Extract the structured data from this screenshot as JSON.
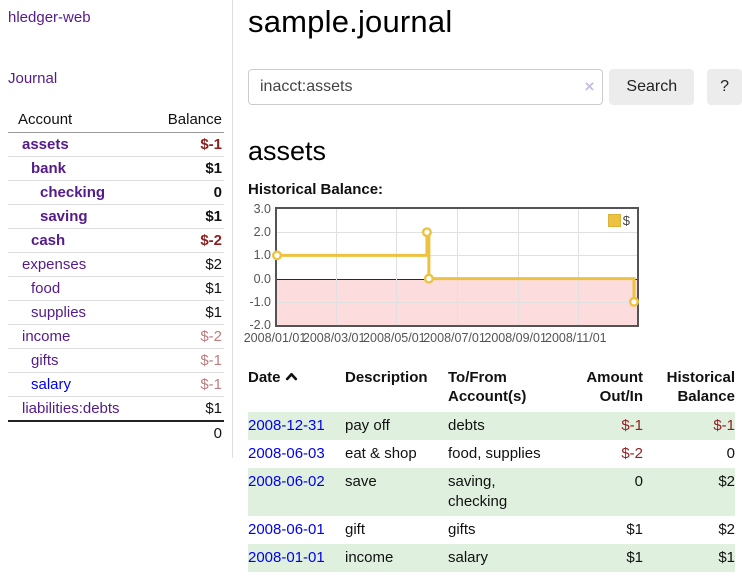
{
  "app": {
    "title": "hledger-web"
  },
  "colors": {
    "link_purple": "#551a8b",
    "link_blue": "#0000ee",
    "negative_strong": "#8f1e1e",
    "negative_muted": "#bc7e7e",
    "row_green": "#dff0df",
    "chart_line_gold": "#edc240",
    "chart_negative_fill": "#fcdcdc",
    "chart_zero_line": "#8b0000"
  },
  "sidebar": {
    "journal_link": "Journal",
    "accounts": {
      "header_account": "Account",
      "header_balance": "Balance",
      "rows": [
        {
          "name": "assets",
          "balance": "$-1"
        },
        {
          "name": "bank",
          "balance": "$1"
        },
        {
          "name": "checking",
          "balance": "0"
        },
        {
          "name": "saving",
          "balance": "$1"
        },
        {
          "name": "cash",
          "balance": "$-2"
        },
        {
          "name": "expenses",
          "balance": "$2"
        },
        {
          "name": "food",
          "balance": "$1"
        },
        {
          "name": "supplies",
          "balance": "$1"
        },
        {
          "name": "income",
          "balance": "$-2"
        },
        {
          "name": "gifts",
          "balance": "$-1"
        },
        {
          "name": "salary",
          "balance": "$-1"
        },
        {
          "name": "liabilities:debts",
          "balance": "$1"
        }
      ],
      "total": "0"
    }
  },
  "main": {
    "title": "sample.journal",
    "search": {
      "value": "inacct:assets",
      "clear_icon": "×",
      "button_label": "Search",
      "help_label": "?"
    },
    "account_heading": "assets",
    "chart_label": "Historical Balance:"
  },
  "chart_data": {
    "type": "line",
    "step": true,
    "title": "Historical Balance:",
    "series": [
      {
        "name": "$",
        "points": [
          {
            "date": "2008-01-01",
            "value": 1
          },
          {
            "date": "2008-06-01",
            "value": 2
          },
          {
            "date": "2008-06-03",
            "value": 0
          },
          {
            "date": "2008-12-31",
            "value": -1
          }
        ]
      }
    ],
    "x_range": [
      "2008-01-01",
      "2008-12-31"
    ],
    "y_min": -2,
    "y_max": 3,
    "yticks": [
      "3.0",
      "2.0",
      "1.0",
      "0.0",
      "-1.0",
      "-2.0"
    ],
    "xticks": [
      "2008/01/01",
      "2008/03/01",
      "2008/05/01",
      "2008/07/01",
      "2008/09/01",
      "2008/11/01"
    ],
    "legend_label": "$",
    "legend_position": "top-right",
    "grid": true,
    "negative_region_shaded": true
  },
  "register": {
    "headers": {
      "date": "Date",
      "description": "Description",
      "accounts": "To/From Account(s)",
      "amount": "Amount Out/In",
      "balance": "Historical Balance"
    },
    "rows": [
      {
        "date": "2008-12-31",
        "description": "pay off",
        "accounts": "debts",
        "amount": "$-1",
        "balance": "$-1"
      },
      {
        "date": "2008-06-03",
        "description": "eat & shop",
        "accounts": "food, supplies",
        "amount": "$-2",
        "balance": "0"
      },
      {
        "date": "2008-06-02",
        "description": "save",
        "accounts": "saving, checking",
        "amount": "0",
        "balance": "$2"
      },
      {
        "date": "2008-06-01",
        "description": "gift",
        "accounts": "gifts",
        "amount": "$1",
        "balance": "$2"
      },
      {
        "date": "2008-01-01",
        "description": "income",
        "accounts": "salary",
        "amount": "$1",
        "balance": "$1"
      }
    ]
  }
}
